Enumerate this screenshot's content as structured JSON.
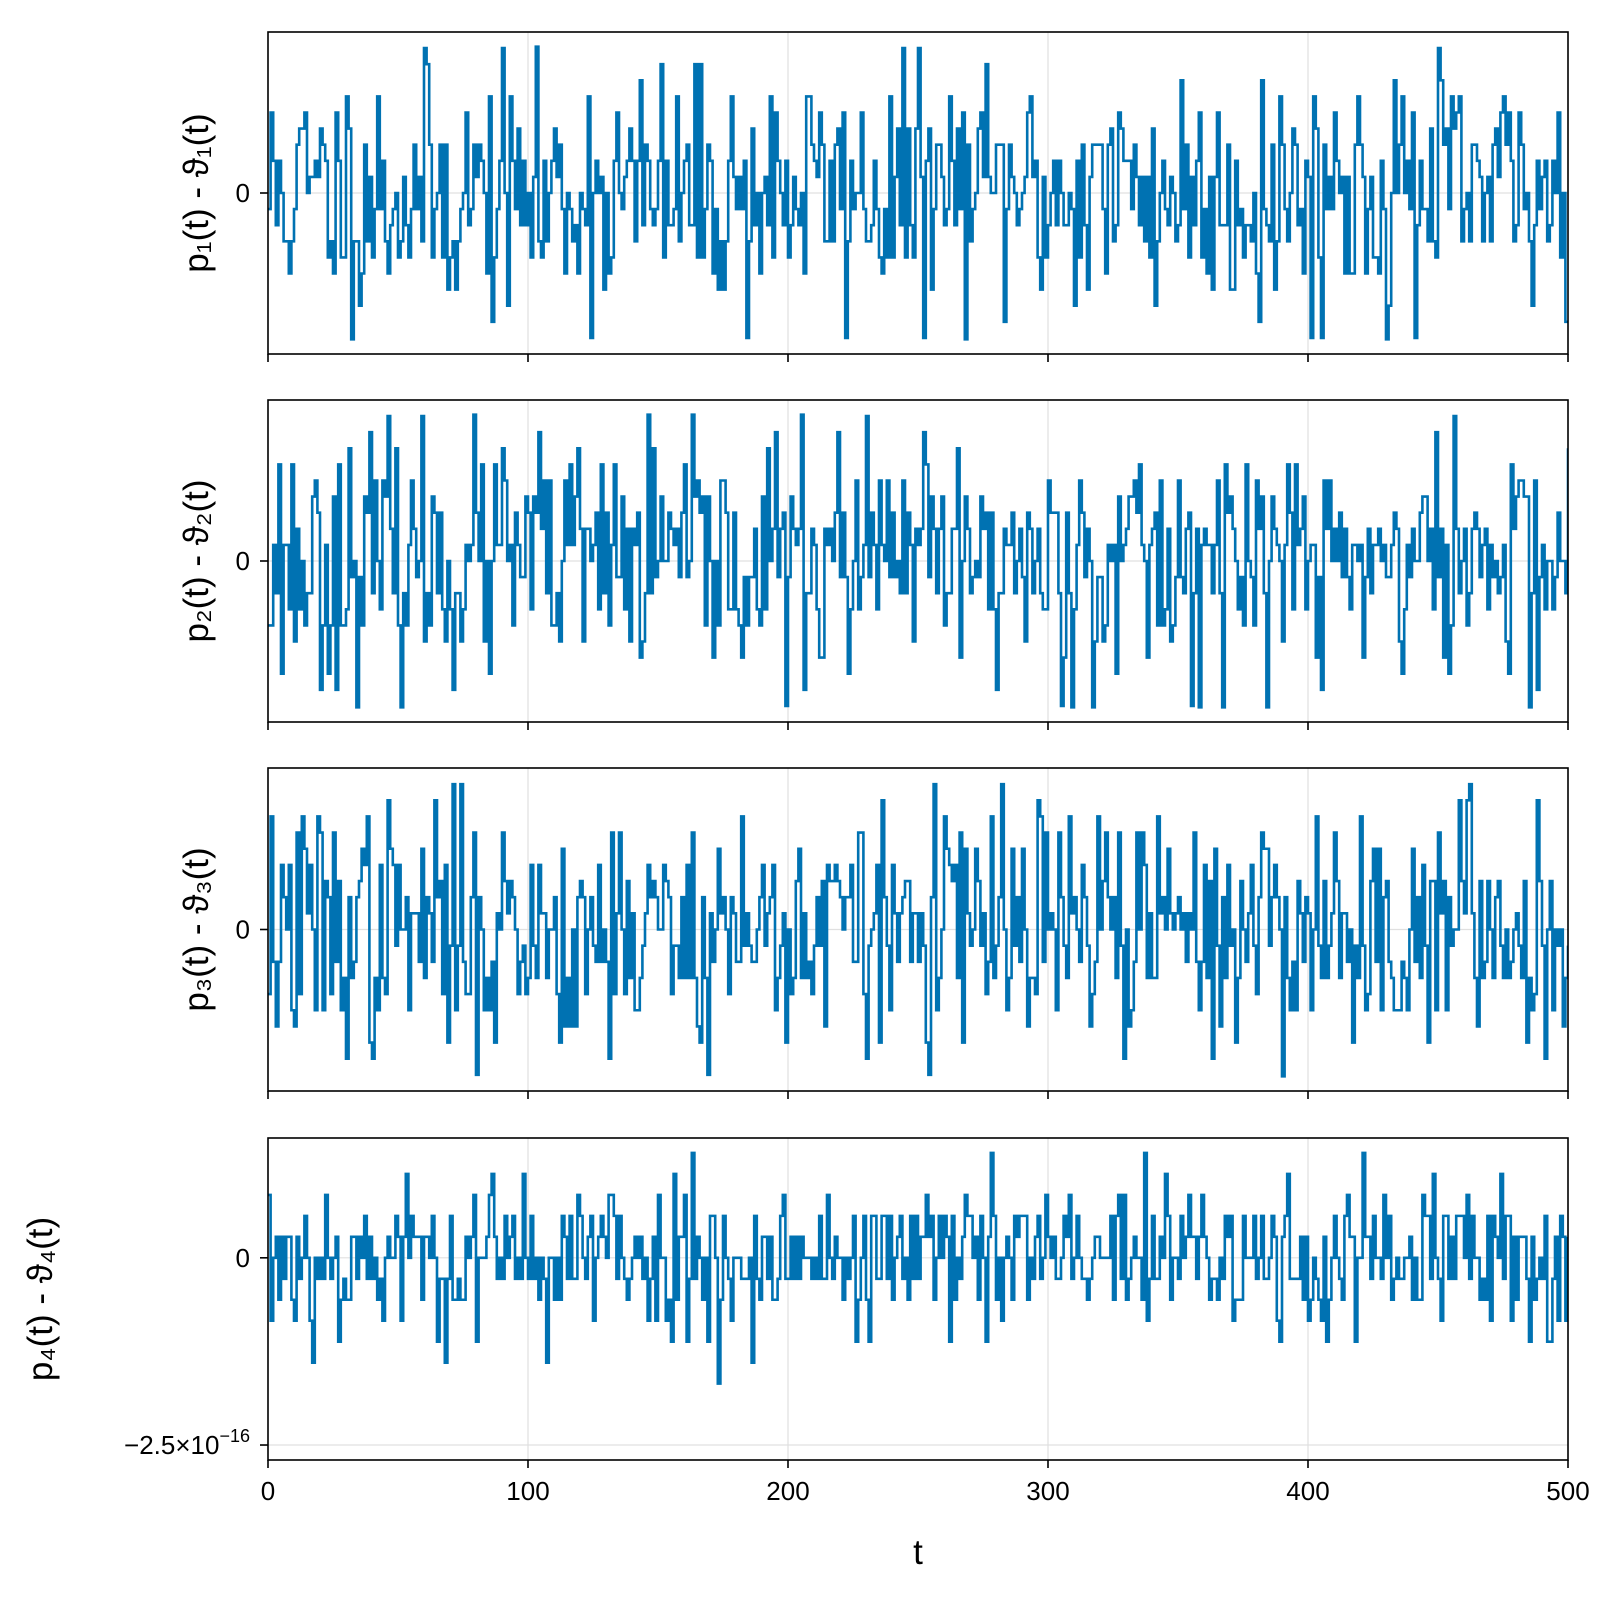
{
  "chart_data": [
    {
      "type": "line",
      "ylabel": "p₁(t) - ϑ₁(t)",
      "xlim": [
        0,
        500
      ],
      "ylim": [
        -1.1,
        1.1
      ],
      "yticks": [
        {
          "value": 0,
          "label": "0"
        }
      ],
      "grid": true,
      "seed": 11,
      "series": [
        {
          "values_summary": "stationary noise about 0",
          "color": "#0072B2"
        }
      ]
    },
    {
      "type": "line",
      "ylabel": "p₂(t) - ϑ₂(t)",
      "xlim": [
        0,
        500
      ],
      "ylim": [
        -1.1,
        1.1
      ],
      "yticks": [
        {
          "value": 0,
          "label": "0"
        }
      ],
      "grid": true,
      "seed": 23,
      "series": [
        {
          "values_summary": "stationary noise about 0",
          "color": "#0072B2"
        }
      ]
    },
    {
      "type": "line",
      "ylabel": "p₃(t) - ϑ₃(t)",
      "xlim": [
        0,
        500
      ],
      "ylim": [
        -1.1,
        1.1
      ],
      "yticks": [
        {
          "value": 0,
          "label": "0"
        }
      ],
      "grid": true,
      "seed": 37,
      "series": [
        {
          "values_summary": "stationary noise about 0",
          "color": "#0072B2"
        }
      ]
    },
    {
      "type": "line",
      "ylabel": "p₄(t) - ϑ₄(t)",
      "xlabel": "t",
      "xlim": [
        0,
        500
      ],
      "ylim": [
        -2.7e-16,
        1.6e-16
      ],
      "yticks": [
        {
          "value": 0,
          "label": "0"
        },
        {
          "value": -2.5e-16,
          "label": "−2.5×10",
          "exp": "−16"
        }
      ],
      "xticks": [
        {
          "value": 0,
          "label": "0"
        },
        {
          "value": 100,
          "label": "100"
        },
        {
          "value": 200,
          "label": "200"
        },
        {
          "value": 300,
          "label": "300"
        },
        {
          "value": 400,
          "label": "400"
        },
        {
          "value": 500,
          "label": "500"
        }
      ],
      "grid": true,
      "seed": 53,
      "series": [
        {
          "values_summary": "stationary noise about 0",
          "color": "#0072B2"
        }
      ]
    }
  ],
  "colors": {
    "series": "#0072B2",
    "grid": "#e0e0e0",
    "axis": "#000000"
  }
}
